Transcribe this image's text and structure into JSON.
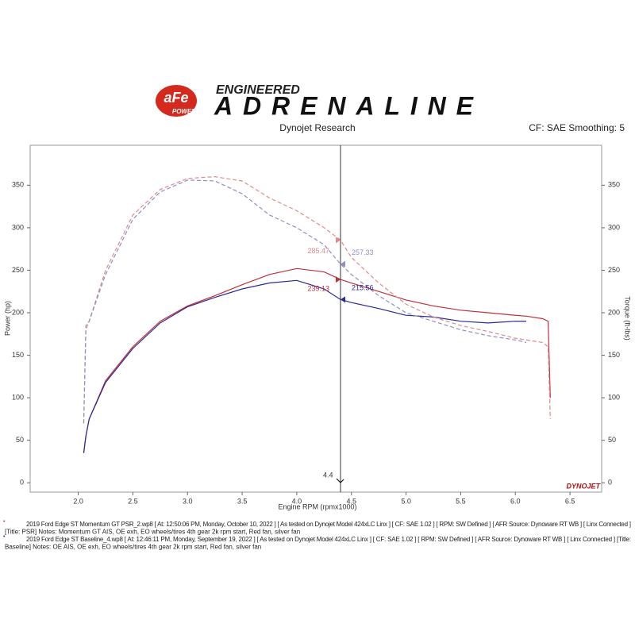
{
  "chart_data": {
    "type": "line",
    "brand": {
      "logo": "aFe",
      "logo_sub": "POWER",
      "tagline": "ENGINEERED",
      "headline": "ADRENALINE"
    },
    "title": "Dynojet Research",
    "subtitle": "CF: SAE Smoothing: 5",
    "xlabel": "Engine RPM (rpmx1000)",
    "ylabel": "Power (hp)",
    "y2label": "Torque (ft-lbs)",
    "watermark": "DYNOJET",
    "x": [
      2.05,
      2.07,
      2.1,
      2.25,
      2.5,
      2.75,
      3.0,
      3.25,
      3.5,
      3.75,
      4.0,
      4.25,
      4.4,
      4.5,
      4.75,
      5.0,
      5.25,
      5.5,
      5.75,
      6.0,
      6.1,
      6.25,
      6.3,
      6.32
    ],
    "series": [
      {
        "color": "#c0303a",
        "values": [
          35,
          55,
          75,
          120,
          160,
          190,
          208,
          220,
          233,
          245,
          252,
          248,
          239.13,
          235,
          225,
          215,
          208,
          203,
          200,
          197,
          196,
          193,
          190,
          100
        ]
      },
      {
        "color": "#2a2a94",
        "values": [
          35,
          55,
          75,
          118,
          158,
          188,
          207,
          218,
          228,
          235,
          238,
          228,
          215.56,
          212,
          205,
          197,
          195,
          190,
          188,
          190,
          190,
          null,
          null,
          null
        ]
      },
      {
        "color": "#e08a8a",
        "axis": "y2",
        "dashed": true,
        "values": [
          70,
          180,
          190,
          250,
          315,
          345,
          358,
          360,
          355,
          335,
          320,
          300,
          285.47,
          265,
          235,
          210,
          195,
          185,
          178,
          170,
          168,
          165,
          160,
          75
        ]
      },
      {
        "color": "#8e8ec4",
        "axis": "y2",
        "dashed": true,
        "values": [
          70,
          185,
          190,
          245,
          310,
          342,
          356,
          355,
          340,
          315,
          300,
          280,
          257.33,
          245,
          220,
          200,
          190,
          180,
          173,
          168,
          165,
          null,
          null,
          null
        ]
      }
    ],
    "cursor": 4.4,
    "cursor_index": 12,
    "xlim": [
      1.56,
      6.79
    ],
    "xticks": [
      {
        "value": 2,
        "label": "2.0"
      },
      2.5,
      {
        "value": 3,
        "label": "3.0"
      },
      3.5,
      {
        "value": 4,
        "label": "4.0"
      },
      4.5,
      {
        "value": 5,
        "label": "5.0"
      },
      5.5,
      {
        "value": 6,
        "label": "6.0"
      },
      6.5
    ],
    "ylim": [
      -11,
      397
    ],
    "yticks": [
      0,
      50,
      100,
      150,
      200,
      250,
      300,
      350
    ],
    "y2lim": [
      -11,
      397
    ],
    "y2ticks": [
      0,
      50,
      100,
      150,
      200,
      250,
      300,
      350
    ],
    "notes": [
      [
        "2019 Ford Edge ST Momentum GT PSR_2.wp8 [ At: 12:50:06 PM, Monday, October 10, 2022 ] [ As tested on Dynojet Model 424xLC Linx ] [ CF: SAE 1.02 ] [ RPM: SW Defined ] [ AFR Source: Dynoware RT WB ] [ Linx Connected ]",
        "[Title: PSR]  Notes: Momentum GT AIS, OE exh, EO wheels/tires  4th gear 2k rpm start, Red fan, silver fan"
      ],
      [
        "2019 Ford Edge ST Baseline_4.wp8 [ At: 12:46:11 PM, Monday, September 19, 2022 ] [ As tested on Dynojet Model 424xLC Linx ] [ CF: SAE 1.02 ] [ RPM: SW Defined ] [ AFR Source: Dynoware RT WB ] [ Linx Connected ] [Title:",
        "Baseline]  Notes: OE AIS, OE exh, EO wheels/tires  4th gear 2k rpm start, Red fan, silver fan"
      ]
    ]
  }
}
